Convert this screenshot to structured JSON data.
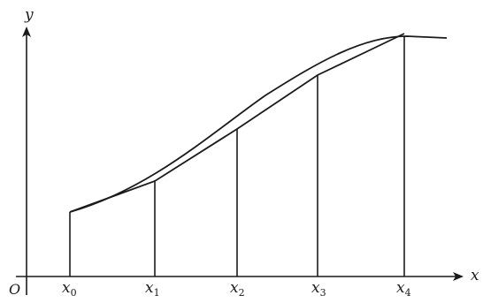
{
  "axes": {
    "y_label": "y",
    "x_label": "x",
    "origin_label": "O"
  },
  "ticks": [
    {
      "base": "x",
      "sub": "0"
    },
    {
      "base": "x",
      "sub": "1"
    },
    {
      "base": "x",
      "sub": "2"
    },
    {
      "base": "x",
      "sub": "3"
    },
    {
      "base": "x",
      "sub": "4"
    }
  ]
}
